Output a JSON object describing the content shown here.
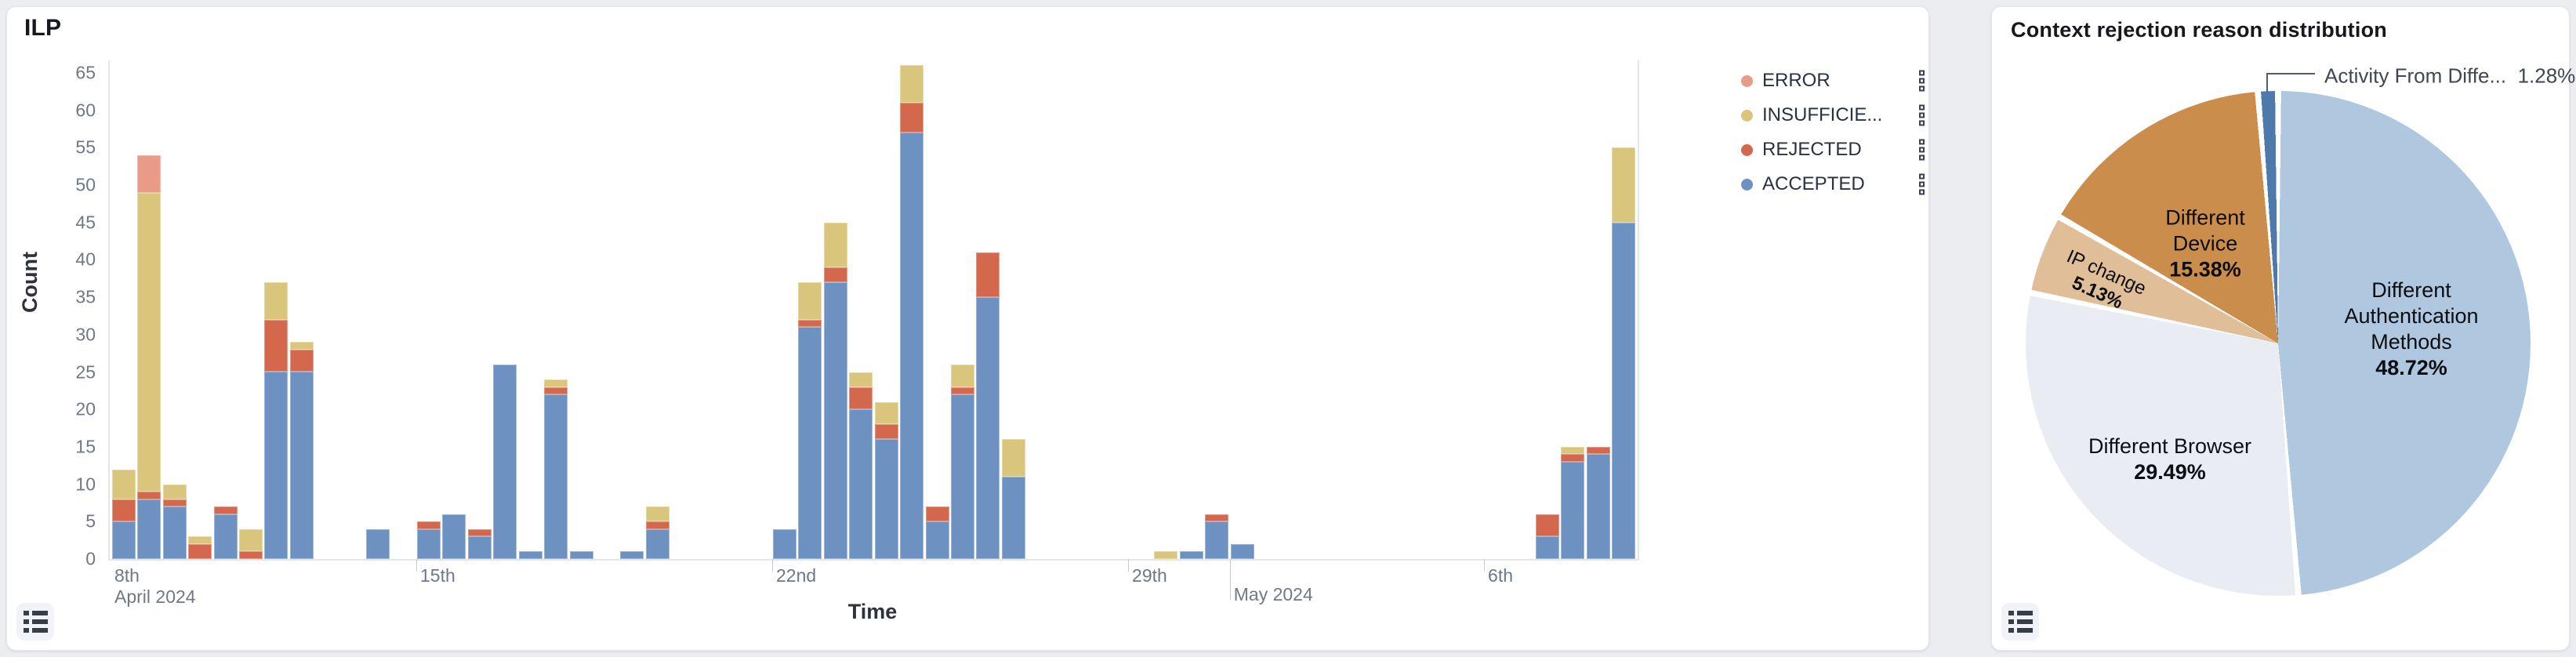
{
  "left_panel": {
    "title": "ILP",
    "x_axis_title": "Time",
    "y_axis_title": "Count",
    "legend": [
      {
        "label": "ERROR",
        "color": "#E99B87"
      },
      {
        "label": "INSUFFICIE...",
        "color": "#D9C67C"
      },
      {
        "label": "REJECTED",
        "color": "#D4684D"
      },
      {
        "label": "ACCEPTED",
        "color": "#6D92C2"
      }
    ]
  },
  "right_panel": {
    "title": "Context rejection reason distribution",
    "labels": {
      "auth": {
        "l1": "Different",
        "l2": "Authentication",
        "l3": "Methods",
        "pct": "48.72%"
      },
      "browser": {
        "l1": "Different Browser",
        "pct": "29.49%"
      },
      "device": {
        "l1": "Different",
        "l2": "Device",
        "pct": "15.38%"
      },
      "ip": {
        "l1": "IP change",
        "pct": "5.13%"
      },
      "activity": {
        "name": "Activity From Diffe...",
        "pct": "1.28%"
      }
    }
  },
  "chart_data": [
    {
      "type": "bar",
      "title": "ILP",
      "xlabel": "Time",
      "ylabel": "Count",
      "stacked": true,
      "ylim": [
        0,
        65
      ],
      "y_ticks": [
        0,
        5,
        10,
        15,
        20,
        25,
        30,
        35,
        40,
        45,
        50,
        55,
        60,
        65
      ],
      "x_ticks": [
        {
          "label": "8th",
          "sublabel": "April 2024",
          "slot": -12.1,
          "at_axis_start": true
        },
        {
          "label": "15th",
          "slot": 0
        },
        {
          "label": "22nd",
          "slot": 14
        },
        {
          "label": "29th",
          "slot": 28
        },
        {
          "label": "May 2024",
          "slot": 32,
          "long_tick": true
        },
        {
          "label": "6th",
          "slot": 42
        }
      ],
      "series_names": [
        "ACCEPTED",
        "REJECTED",
        "INSUFFICIENT",
        "ERROR"
      ],
      "series_colors": [
        "#6D92C2",
        "#D4684D",
        "#D9C67C",
        "#E99B87"
      ],
      "bin_width_hours": 12,
      "bins": [
        {
          "slot": -12,
          "time": "Apr 9 AM",
          "accepted": 5,
          "rejected": 3,
          "insufficient": 4,
          "error": 0
        },
        {
          "slot": -11,
          "time": "Apr 9 PM",
          "accepted": 8,
          "rejected": 1,
          "insufficient": 40,
          "error": 5
        },
        {
          "slot": -10,
          "time": "Apr 10 AM",
          "accepted": 7,
          "rejected": 1,
          "insufficient": 2,
          "error": 0
        },
        {
          "slot": -9,
          "time": "Apr 10 PM",
          "accepted": 0,
          "rejected": 2,
          "insufficient": 1,
          "error": 0
        },
        {
          "slot": -8,
          "time": "Apr 11 AM",
          "accepted": 6,
          "rejected": 1,
          "insufficient": 0,
          "error": 0
        },
        {
          "slot": -7,
          "time": "Apr 11 PM",
          "accepted": 0,
          "rejected": 1,
          "insufficient": 3,
          "error": 0
        },
        {
          "slot": -6,
          "time": "Apr 12 AM",
          "accepted": 25,
          "rejected": 7,
          "insufficient": 5,
          "error": 0
        },
        {
          "slot": -5,
          "time": "Apr 12 PM",
          "accepted": 25,
          "rejected": 3,
          "insufficient": 1,
          "error": 0
        },
        {
          "slot": -2,
          "time": "Apr 14 AM",
          "accepted": 4,
          "rejected": 0,
          "insufficient": 0,
          "error": 0
        },
        {
          "slot": 0,
          "time": "Apr 15 AM",
          "accepted": 4,
          "rejected": 1,
          "insufficient": 0,
          "error": 0
        },
        {
          "slot": 1,
          "time": "Apr 15 PM",
          "accepted": 6,
          "rejected": 0,
          "insufficient": 0,
          "error": 0
        },
        {
          "slot": 2,
          "time": "Apr 16 AM",
          "accepted": 3,
          "rejected": 1,
          "insufficient": 0,
          "error": 0
        },
        {
          "slot": 3,
          "time": "Apr 16 PM",
          "accepted": 26,
          "rejected": 0,
          "insufficient": 0,
          "error": 0
        },
        {
          "slot": 4,
          "time": "Apr 17 AM",
          "accepted": 1,
          "rejected": 0,
          "insufficient": 0,
          "error": 0
        },
        {
          "slot": 5,
          "time": "Apr 17 PM",
          "accepted": 22,
          "rejected": 1,
          "insufficient": 1,
          "error": 0
        },
        {
          "slot": 6,
          "time": "Apr 18 AM",
          "accepted": 1,
          "rejected": 0,
          "insufficient": 0,
          "error": 0
        },
        {
          "slot": 8,
          "time": "Apr 19 AM",
          "accepted": 1,
          "rejected": 0,
          "insufficient": 0,
          "error": 0
        },
        {
          "slot": 9,
          "time": "Apr 19 PM",
          "accepted": 4,
          "rejected": 1,
          "insufficient": 2,
          "error": 0
        },
        {
          "slot": 14,
          "time": "Apr 22 AM",
          "accepted": 4,
          "rejected": 0,
          "insufficient": 0,
          "error": 0
        },
        {
          "slot": 15,
          "time": "Apr 22 PM",
          "accepted": 31,
          "rejected": 1,
          "insufficient": 5,
          "error": 0
        },
        {
          "slot": 16,
          "time": "Apr 23 AM",
          "accepted": 37,
          "rejected": 2,
          "insufficient": 6,
          "error": 0
        },
        {
          "slot": 17,
          "time": "Apr 23 PM",
          "accepted": 20,
          "rejected": 3,
          "insufficient": 2,
          "error": 0
        },
        {
          "slot": 18,
          "time": "Apr 24 AM",
          "accepted": 16,
          "rejected": 2,
          "insufficient": 3,
          "error": 0
        },
        {
          "slot": 19,
          "time": "Apr 24 PM",
          "accepted": 57,
          "rejected": 4,
          "insufficient": 5,
          "error": 0
        },
        {
          "slot": 20,
          "time": "Apr 25 AM",
          "accepted": 5,
          "rejected": 2,
          "insufficient": 0,
          "error": 0
        },
        {
          "slot": 21,
          "time": "Apr 25 PM",
          "accepted": 22,
          "rejected": 1,
          "insufficient": 3,
          "error": 0
        },
        {
          "slot": 22,
          "time": "Apr 26 AM",
          "accepted": 35,
          "rejected": 6,
          "insufficient": 0,
          "error": 0
        },
        {
          "slot": 23,
          "time": "Apr 26 PM",
          "accepted": 11,
          "rejected": 0,
          "insufficient": 5,
          "error": 0
        },
        {
          "slot": 29,
          "time": "Apr 29 PM",
          "accepted": 0,
          "rejected": 0,
          "insufficient": 1,
          "error": 0
        },
        {
          "slot": 30,
          "time": "Apr 30 AM",
          "accepted": 1,
          "rejected": 0,
          "insufficient": 0,
          "error": 0
        },
        {
          "slot": 31,
          "time": "Apr 30 PM",
          "accepted": 5,
          "rejected": 1,
          "insufficient": 0,
          "error": 0
        },
        {
          "slot": 32,
          "time": "May 1 AM",
          "accepted": 2,
          "rejected": 0,
          "insufficient": 0,
          "error": 0
        },
        {
          "slot": 44,
          "time": "May 7 AM",
          "accepted": 3,
          "rejected": 3,
          "insufficient": 0,
          "error": 0
        },
        {
          "slot": 45,
          "time": "May 7 PM",
          "accepted": 13,
          "rejected": 1,
          "insufficient": 1,
          "error": 0
        },
        {
          "slot": 46,
          "time": "May 8 AM",
          "accepted": 14,
          "rejected": 1,
          "insufficient": 0,
          "error": 0
        },
        {
          "slot": 47,
          "time": "May 8 PM",
          "accepted": 45,
          "rejected": 0,
          "insufficient": 10,
          "error": 0
        }
      ]
    },
    {
      "type": "pie",
      "title": "Context rejection reason distribution",
      "legend_position": "none",
      "slices": [
        {
          "label": "Different Authentication Methods",
          "pct": 48.72,
          "color": "#AFC7DF"
        },
        {
          "label": "Different Browser",
          "pct": 29.49,
          "color": "#E9EDF3"
        },
        {
          "label": "IP change",
          "pct": 5.13,
          "color": "#DFBE98"
        },
        {
          "label": "Different Device",
          "pct": 15.38,
          "color": "#CB8D4C"
        },
        {
          "label": "Activity From Diffe...",
          "pct": 1.28,
          "color": "#4E79AB"
        }
      ]
    }
  ]
}
